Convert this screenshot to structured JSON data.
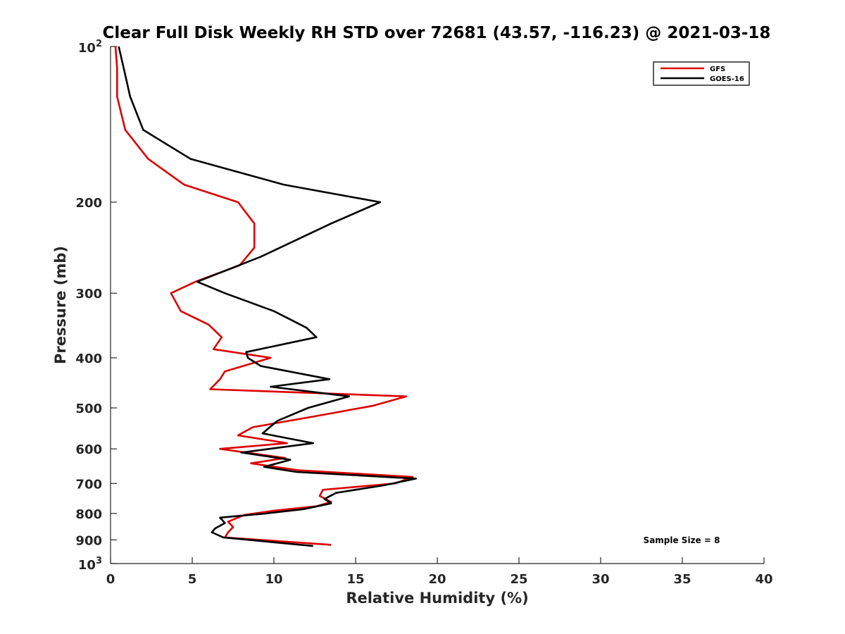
{
  "chart_data": {
    "type": "line",
    "title": "Clear Full Disk Weekly RH STD over 72681 (43.57, -116.23) @ 2021-03-18",
    "xlabel": "Relative Humidity (%)",
    "ylabel": "Pressure (mb)",
    "xlim": [
      0,
      40
    ],
    "ylim": [
      100,
      1000
    ],
    "y_scale": "log",
    "y_reversed": true,
    "x_ticks": [
      0,
      5,
      10,
      15,
      20,
      25,
      30,
      35,
      40
    ],
    "x_tick_labels": [
      "0",
      "5",
      "10",
      "15",
      "20",
      "25",
      "30",
      "35",
      "40"
    ],
    "y_ticks": [
      200,
      300,
      400,
      500,
      600,
      700,
      800,
      900
    ],
    "y_tick_labels": [
      "200",
      "300",
      "400",
      "500",
      "600",
      "700",
      "800",
      "900"
    ],
    "y_end_ticks": [
      {
        "value": 100,
        "base": "10",
        "exp": "2"
      },
      {
        "value": 1000,
        "base": "10",
        "exp": "3"
      }
    ],
    "grid": false,
    "legend_position": "top-right",
    "series": [
      {
        "name": "GFS",
        "color": "#dd0000",
        "points": [
          [
            0.3,
            100
          ],
          [
            0.4,
            110
          ],
          [
            0.4,
            125
          ],
          [
            0.9,
            145
          ],
          [
            2.3,
            165
          ],
          [
            4.5,
            185
          ],
          [
            7.8,
            200
          ],
          [
            8.8,
            220
          ],
          [
            8.8,
            245
          ],
          [
            7.9,
            265
          ],
          [
            5.2,
            285
          ],
          [
            3.7,
            300
          ],
          [
            4.3,
            325
          ],
          [
            6.0,
            345
          ],
          [
            6.8,
            365
          ],
          [
            6.3,
            385
          ],
          [
            9.8,
            400
          ],
          [
            7.0,
            425
          ],
          [
            6.7,
            440
          ],
          [
            6.1,
            460
          ],
          [
            18.1,
            475
          ],
          [
            16.1,
            495
          ],
          [
            13.1,
            515
          ],
          [
            8.7,
            545
          ],
          [
            7.8,
            565
          ],
          [
            10.8,
            585
          ],
          [
            6.7,
            600
          ],
          [
            10.7,
            625
          ],
          [
            8.6,
            640
          ],
          [
            11.5,
            660
          ],
          [
            18.5,
            680
          ],
          [
            17.4,
            700
          ],
          [
            13.0,
            720
          ],
          [
            12.8,
            740
          ],
          [
            13.5,
            760
          ],
          [
            12.6,
            775
          ],
          [
            10.0,
            790
          ],
          [
            8.2,
            805
          ],
          [
            7.2,
            830
          ],
          [
            7.5,
            850
          ],
          [
            7.2,
            870
          ],
          [
            7.0,
            890
          ],
          [
            13.5,
            920
          ]
        ]
      },
      {
        "name": "GOES-16",
        "color": "#000000",
        "points": [
          [
            0.5,
            100
          ],
          [
            0.8,
            110
          ],
          [
            1.2,
            125
          ],
          [
            2.0,
            145
          ],
          [
            4.9,
            165
          ],
          [
            10.6,
            185
          ],
          [
            16.5,
            200
          ],
          [
            13.5,
            220
          ],
          [
            9.2,
            255
          ],
          [
            5.3,
            285
          ],
          [
            7.0,
            300
          ],
          [
            10.0,
            325
          ],
          [
            12.0,
            350
          ],
          [
            12.6,
            365
          ],
          [
            8.3,
            390
          ],
          [
            8.4,
            400
          ],
          [
            9.2,
            415
          ],
          [
            13.4,
            440
          ],
          [
            9.8,
            455
          ],
          [
            14.6,
            475
          ],
          [
            12.1,
            500
          ],
          [
            10.2,
            530
          ],
          [
            9.3,
            560
          ],
          [
            12.4,
            585
          ],
          [
            8.0,
            610
          ],
          [
            11.0,
            630
          ],
          [
            9.4,
            650
          ],
          [
            11.4,
            665
          ],
          [
            18.7,
            685
          ],
          [
            16.8,
            705
          ],
          [
            13.8,
            730
          ],
          [
            13.1,
            750
          ],
          [
            13.5,
            765
          ],
          [
            11.8,
            785
          ],
          [
            9.5,
            800
          ],
          [
            6.7,
            815
          ],
          [
            7.0,
            835
          ],
          [
            6.4,
            855
          ],
          [
            6.2,
            870
          ],
          [
            6.9,
            890
          ],
          [
            12.4,
            925
          ]
        ]
      }
    ],
    "annotation": "Sample Size = 8"
  }
}
